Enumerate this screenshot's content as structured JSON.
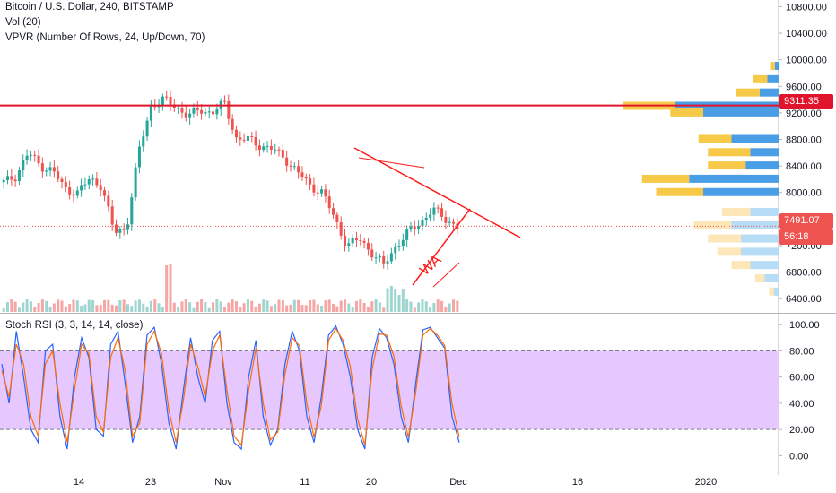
{
  "header": {
    "title": "Bitcoin / U.S. Dollar, 240, BITSTAMP",
    "volume": "Vol (20)",
    "vpvr": "VPVR (Number Of Rows, 24, Up/Down, 70)"
  },
  "oscillator_label": "Stoch RSI (3, 3, 14, 14, close)",
  "price_tags": {
    "resistance": "9311.35",
    "last": "7491.07",
    "countdown": "56:18"
  },
  "colors": {
    "up": "#26a69a",
    "down": "#ef5350",
    "resistance_line": "#e0142a",
    "drawing": "#ff1a1a",
    "vpvr_up": "#4a9ee6",
    "vpvr_down": "#f7c948",
    "rsi_band": "#e6c8ff",
    "rsi_k": "#2962ff",
    "rsi_d": "#ff6d00",
    "last_price": "#ef5350"
  },
  "chart_data": [
    {
      "type": "candlestick",
      "title": "Bitcoin / U.S. Dollar, 240, BITSTAMP",
      "ylim": [
        6200,
        10900
      ],
      "y_ticks": [
        "10800.00",
        "10400.00",
        "10000.00",
        "9600.00",
        "9200.00",
        "8800.00",
        "8400.00",
        "8000.00",
        "7600.00",
        "7200.00",
        "6800.00",
        "6400.00"
      ],
      "x_ticks": [
        "14",
        "23",
        "Nov",
        "11",
        "20",
        "Dec",
        "16",
        "2020"
      ],
      "close_path": [
        {
          "x": "Oct 6",
          "close": 8150
        },
        {
          "x": "Oct 8",
          "close": 8250
        },
        {
          "x": "Oct 10",
          "close": 8600
        },
        {
          "x": "Oct 12",
          "close": 8400
        },
        {
          "x": "Oct 14",
          "close": 8330
        },
        {
          "x": "Oct 16",
          "close": 8050
        },
        {
          "x": "Oct 18",
          "close": 8000
        },
        {
          "x": "Oct 20",
          "close": 8200
        },
        {
          "x": "Oct 22",
          "close": 8100
        },
        {
          "x": "Oct 23",
          "close": 7400
        },
        {
          "x": "Oct 24",
          "close": 7450
        },
        {
          "x": "Oct 25",
          "close": 8600
        },
        {
          "x": "Oct 26",
          "close": 9300
        },
        {
          "x": "Oct 27",
          "close": 9400
        },
        {
          "x": "Oct 29",
          "close": 9300
        },
        {
          "x": "Oct 31",
          "close": 9150
        },
        {
          "x": "Nov 2",
          "close": 9250
        },
        {
          "x": "Nov 4",
          "close": 9200
        },
        {
          "x": "Nov 6",
          "close": 9350
        },
        {
          "x": "Nov 8",
          "close": 8800
        },
        {
          "x": "Nov 10",
          "close": 8800
        },
        {
          "x": "Nov 12",
          "close": 8700
        },
        {
          "x": "Nov 14",
          "close": 8650
        },
        {
          "x": "Nov 16",
          "close": 8500
        },
        {
          "x": "Nov 18",
          "close": 8300
        },
        {
          "x": "Nov 19",
          "close": 8100
        },
        {
          "x": "Nov 20",
          "close": 8000
        },
        {
          "x": "Nov 21",
          "close": 7600
        },
        {
          "x": "Nov 22",
          "close": 7200
        },
        {
          "x": "Nov 23",
          "close": 7300
        },
        {
          "x": "Nov 24",
          "close": 7100
        },
        {
          "x": "Nov 25",
          "close": 6900
        },
        {
          "x": "Nov 26",
          "close": 7200
        },
        {
          "x": "Nov 27",
          "close": 7400
        },
        {
          "x": "Nov 28",
          "close": 7550
        },
        {
          "x": "Nov 29",
          "close": 7750
        },
        {
          "x": "Nov 30",
          "close": 7600
        },
        {
          "x": "Dec 1",
          "close": 7491.07
        }
      ],
      "horizontal_line": 9311.35,
      "last_price": 7491.07,
      "annotations": [
        "WA"
      ],
      "vpvr_rows": [
        {
          "price": 9900,
          "up": 5,
          "down": 4
        },
        {
          "price": 9700,
          "up": 15,
          "down": 12
        },
        {
          "price": 9500,
          "up": 25,
          "down": 20
        },
        {
          "price": 9300,
          "up": 55,
          "down": 110
        },
        {
          "price": 9200,
          "up": 35,
          "down": 80
        },
        {
          "price": 8800,
          "up": 35,
          "down": 50
        },
        {
          "price": 8600,
          "up": 45,
          "down": 30
        },
        {
          "price": 8400,
          "up": 40,
          "down": 35
        },
        {
          "price": 8200,
          "up": 50,
          "down": 95
        },
        {
          "price": 8000,
          "up": 50,
          "down": 80
        },
        {
          "price": 7700,
          "up": 30,
          "down": 30
        },
        {
          "price": 7500,
          "up": 40,
          "down": 50
        },
        {
          "price": 7300,
          "up": 35,
          "down": 40
        },
        {
          "price": 7100,
          "up": 25,
          "down": 40
        },
        {
          "price": 6900,
          "up": 20,
          "down": 30
        },
        {
          "price": 6700,
          "up": 10,
          "down": 15
        },
        {
          "price": 6500,
          "up": 5,
          "down": 5
        }
      ]
    },
    {
      "type": "line",
      "title": "Stoch RSI (3, 3, 14, 14, close)",
      "ylim": [
        -8,
        107
      ],
      "y_ticks": [
        "100.00",
        "80.00",
        "60.00",
        "40.00",
        "20.00",
        "0.00"
      ],
      "band": [
        20,
        80
      ],
      "series": [
        {
          "values": [
            70,
            40,
            95,
            60,
            20,
            10,
            80,
            85,
            30,
            5,
            60,
            90,
            75,
            20,
            15,
            85,
            95,
            55,
            10,
            30,
            92,
            98,
            70,
            25,
            5,
            50,
            90,
            60,
            40,
            88,
            95,
            40,
            10,
            5,
            60,
            88,
            30,
            8,
            20,
            70,
            95,
            80,
            30,
            10,
            45,
            92,
            99,
            85,
            60,
            20,
            5,
            75,
            97,
            90,
            70,
            30,
            10,
            55,
            96,
            98,
            90,
            82,
            30,
            10
          ]
        },
        {
          "values": [
            65,
            45,
            85,
            70,
            30,
            15,
            70,
            80,
            40,
            10,
            50,
            85,
            78,
            30,
            18,
            75,
            90,
            65,
            15,
            25,
            85,
            95,
            78,
            35,
            10,
            42,
            85,
            68,
            45,
            80,
            92,
            50,
            15,
            8,
            50,
            82,
            40,
            12,
            18,
            62,
            90,
            84,
            40,
            14,
            38,
            88,
            97,
            88,
            68,
            28,
            8,
            66,
            93,
            92,
            76,
            38,
            14,
            48,
            92,
            97,
            92,
            84,
            40,
            14
          ]
        }
      ]
    }
  ]
}
